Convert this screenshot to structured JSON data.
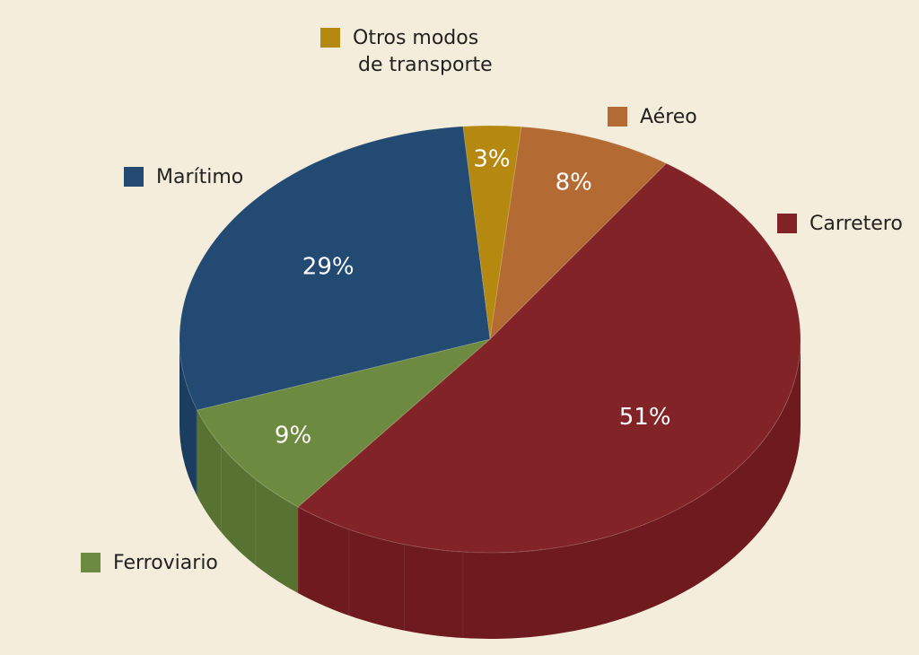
{
  "chart_data": {
    "type": "pie",
    "title": "",
    "style": "3d",
    "legend": "around the pie, next to each slice",
    "slices": [
      {
        "label": "Otros modos de transporte",
        "label_lines": [
          "Otros modos",
          "de transporte"
        ],
        "value": 3,
        "display": "3%",
        "color": "#b5880f",
        "side_color": "#8c6a0b"
      },
      {
        "label": "Aéreo",
        "label_lines": [
          "Aéreo"
        ],
        "value": 8,
        "display": "8%",
        "color": "#b46a33",
        "side_color": "#8c5226"
      },
      {
        "label": "Carretero",
        "label_lines": [
          "Carretero"
        ],
        "value": 51,
        "display": "51%",
        "color": "#822427",
        "side_color": "#6e1a1e"
      },
      {
        "label": "Ferroviario",
        "label_lines": [
          "Ferroviario"
        ],
        "value": 9,
        "display": "9%",
        "color": "#6d8b40",
        "side_color": "#587232"
      },
      {
        "label": "Marítimo",
        "label_lines": [
          "Marítimo"
        ],
        "value": 29,
        "display": "29%",
        "color": "#224a72",
        "side_color": "#1b3d60"
      }
    ]
  }
}
